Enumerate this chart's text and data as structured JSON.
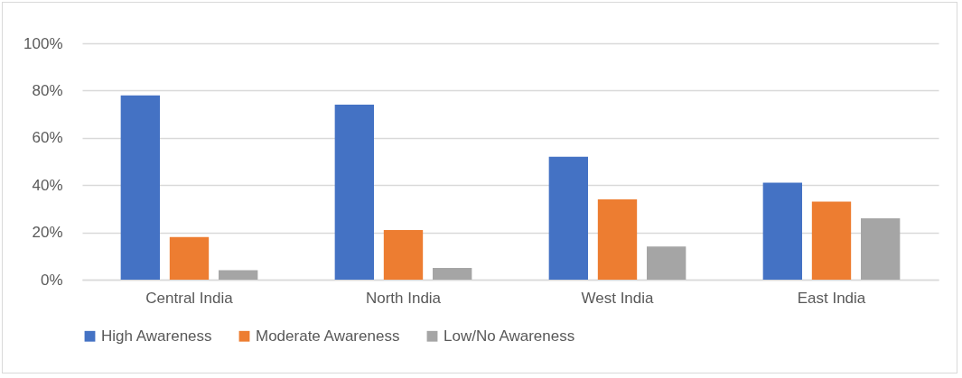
{
  "chart_data": {
    "type": "bar",
    "categories": [
      "Central India",
      "North India",
      "West India",
      "East India"
    ],
    "series": [
      {
        "name": "High Awareness",
        "color": "#4472c4",
        "values": [
          78,
          74,
          52,
          41
        ]
      },
      {
        "name": "Moderate Awareness",
        "color": "#ed7d31",
        "values": [
          18,
          21,
          34,
          33
        ]
      },
      {
        "name": "Low/No Awareness",
        "color": "#a5a5a5",
        "values": [
          4,
          5,
          14,
          26
        ]
      }
    ],
    "ylim": [
      0,
      100
    ],
    "yticks": [
      {
        "value": 0,
        "label": "0%"
      },
      {
        "value": 20,
        "label": "20%"
      },
      {
        "value": 40,
        "label": "40%"
      },
      {
        "value": 60,
        "label": "60%"
      },
      {
        "value": 80,
        "label": "80%"
      },
      {
        "value": 100,
        "label": "100%"
      }
    ],
    "grid": "y",
    "legend": "bottom"
  }
}
